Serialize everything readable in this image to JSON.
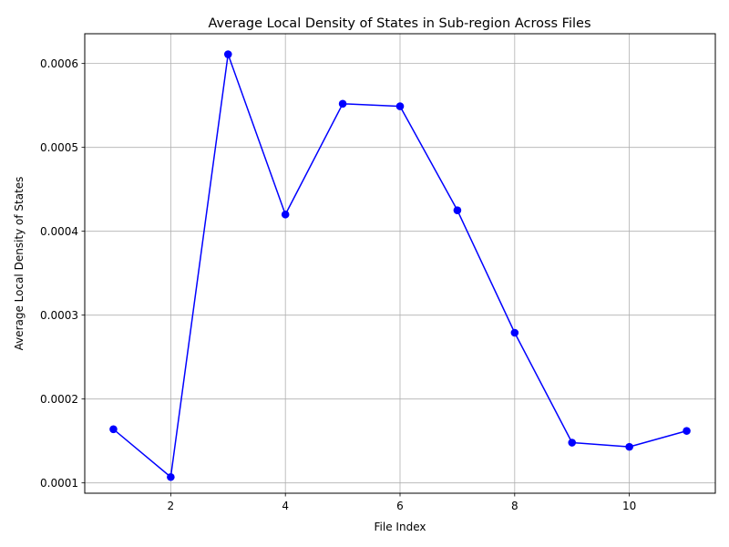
{
  "chart_data": {
    "type": "line",
    "title": "Average Local Density of States in Sub-region Across Files",
    "xlabel": "File Index",
    "ylabel": "Average Local Density of States",
    "x": [
      1,
      2,
      3,
      4,
      5,
      6,
      7,
      8,
      9,
      10,
      11
    ],
    "series": [
      {
        "values": [
          0.000164,
          0.000107,
          0.000611,
          0.00042,
          0.000552,
          0.000549,
          0.000425,
          0.000279,
          0.000148,
          0.000143,
          0.000162
        ],
        "color": "#0000ff",
        "marker": "circle"
      }
    ],
    "xlim": [
      0.5,
      11.5
    ],
    "ylim": [
      8.77e-05,
      0.0006355
    ],
    "xticks": [
      2,
      4,
      6,
      8,
      10
    ],
    "xtick_labels": [
      "2",
      "4",
      "6",
      "8",
      "10"
    ],
    "yticks": [
      0.0001,
      0.0002,
      0.0003,
      0.0004,
      0.0005,
      0.0006
    ],
    "ytick_labels": [
      "0.0001",
      "0.0002",
      "0.0003",
      "0.0004",
      "0.0005",
      "0.0006"
    ],
    "grid": true
  }
}
